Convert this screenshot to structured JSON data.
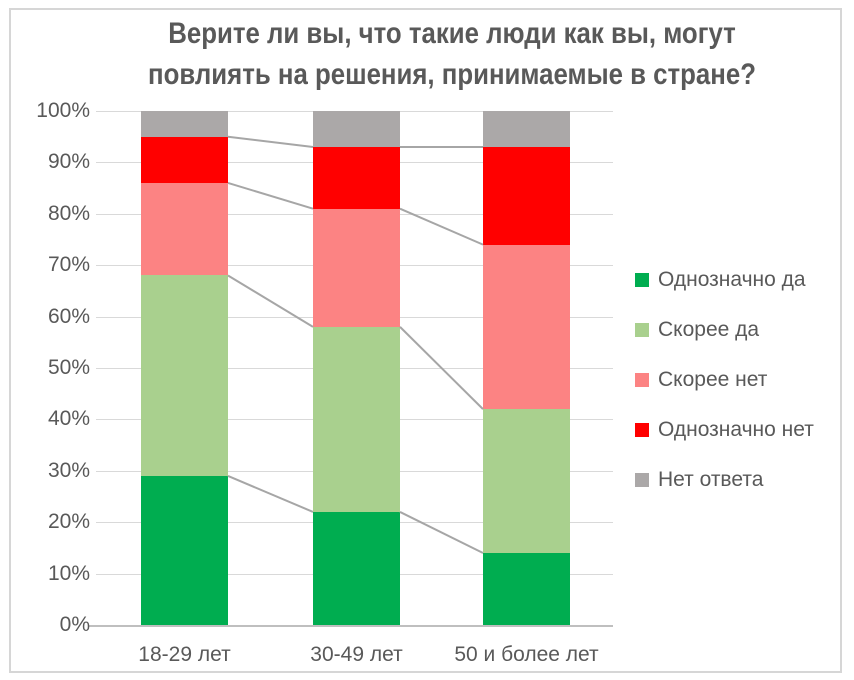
{
  "title": {
    "line1": "Верите ли вы, что такие люди как вы, могут",
    "line2": "повлиять на решения, принимаемые в стране?"
  },
  "chart_data": {
    "type": "bar",
    "stacked": true,
    "title": "Верите ли вы, что такие люди как вы, могут повлиять на решения, принимаемые в стране?",
    "categories": [
      "18-29 лет",
      "30-49 лет",
      "50 и более лет"
    ],
    "series": [
      {
        "name": "Однозначно да",
        "color": "#00ad50",
        "values": [
          29,
          22,
          14
        ]
      },
      {
        "name": "Скорее да",
        "color": "#a9d08e",
        "values": [
          39,
          36,
          28
        ]
      },
      {
        "name": "Скорее нет",
        "color": "#fc8383",
        "values": [
          18,
          23,
          32
        ]
      },
      {
        "name": "Однозначно нет",
        "color": "#ff0000",
        "values": [
          9,
          12,
          19
        ]
      },
      {
        "name": "Нет ответа",
        "color": "#aba8a8",
        "values": [
          5,
          7,
          7
        ]
      }
    ],
    "y_ticks": [
      "0%",
      "10%",
      "20%",
      "30%",
      "40%",
      "50%",
      "60%",
      "70%",
      "80%",
      "90%",
      "100%"
    ],
    "ylim": [
      0,
      100
    ],
    "grid": true,
    "legend_position": "right",
    "series_connector_lines": true
  },
  "colors": {
    "text": "#595959",
    "gridline": "#d9d9d9",
    "axis_line": "#bfbfbf",
    "connector_line": "#a6a6a6",
    "frame_border": "#d6d6d6",
    "background": "#ffffff"
  }
}
